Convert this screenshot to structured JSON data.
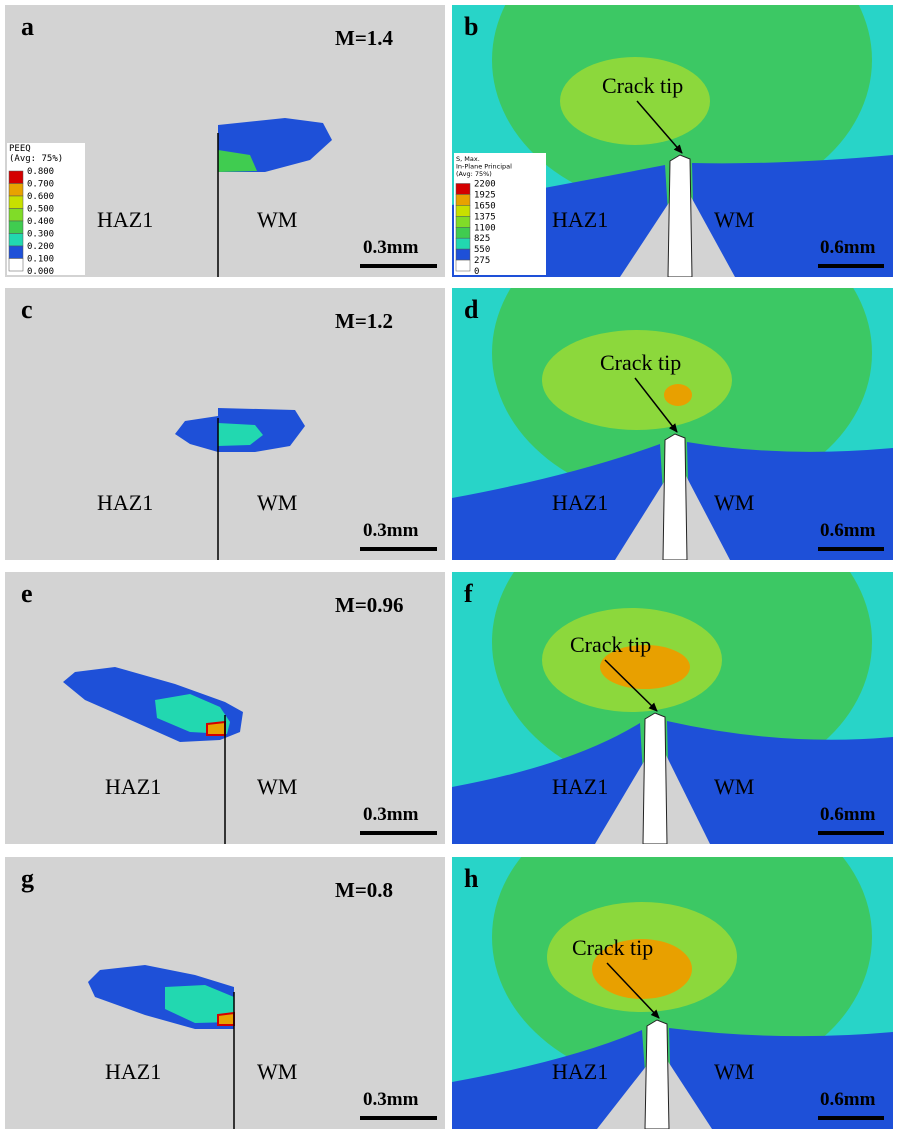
{
  "panels": [
    {
      "label": "a",
      "m": "M=1.4",
      "haz": "HAZ1",
      "wm": "WM",
      "scale": "0.3mm"
    },
    {
      "label": "b",
      "annotation": "Crack tip",
      "haz": "HAZ1",
      "wm": "WM",
      "scale": "0.6mm"
    },
    {
      "label": "c",
      "m": "M=1.2",
      "haz": "HAZ1",
      "wm": "WM",
      "scale": "0.3mm"
    },
    {
      "label": "d",
      "annotation": "Crack tip",
      "haz": "HAZ1",
      "wm": "WM",
      "scale": "0.6mm"
    },
    {
      "label": "e",
      "m": "M=0.96",
      "haz": "HAZ1",
      "wm": "WM",
      "scale": "0.3mm"
    },
    {
      "label": "f",
      "annotation": "Crack tip",
      "haz": "HAZ1",
      "wm": "WM",
      "scale": "0.6mm"
    },
    {
      "label": "g",
      "m": "M=0.8",
      "haz": "HAZ1",
      "wm": "WM",
      "scale": "0.3mm"
    },
    {
      "label": "h",
      "annotation": "Crack tip",
      "haz": "HAZ1",
      "wm": "WM",
      "scale": "0.6mm"
    }
  ],
  "legend_left": {
    "title": [
      "PEEQ",
      "(Avg: 75%)"
    ],
    "values": [
      "0.800",
      "0.700",
      "0.600",
      "0.500",
      "0.400",
      "0.300",
      "0.200",
      "0.100",
      "0.000"
    ]
  },
  "legend_right": {
    "title": [
      "S, Max.",
      "In-Plane Principal",
      "(Avg: 75%)"
    ],
    "values": [
      "2200",
      "1925",
      "1650",
      "1375",
      "1100",
      "825",
      "550",
      "275",
      "0"
    ]
  }
}
